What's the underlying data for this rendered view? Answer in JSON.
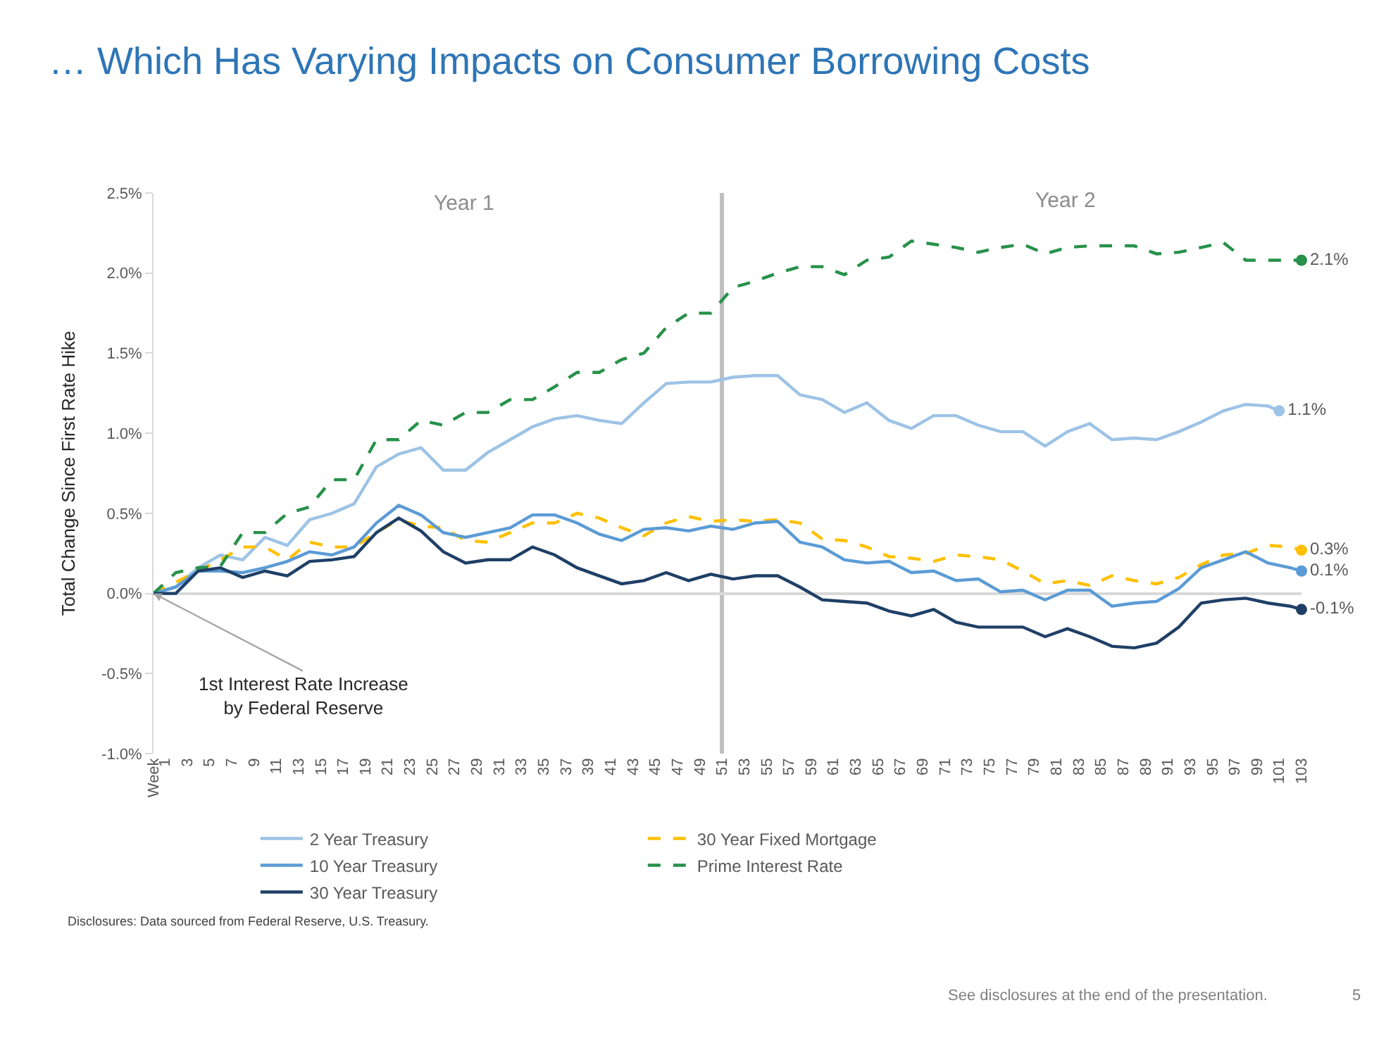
{
  "chart_data": {
    "type": "line",
    "title": "… Which Has Varying Impacts on Consumer Borrowing Costs",
    "ylabel": "Total Change Since First Rate Hike",
    "x": [
      0,
      2,
      4,
      6,
      8,
      10,
      12,
      14,
      16,
      18,
      20,
      22,
      24,
      26,
      28,
      30,
      32,
      34,
      36,
      38,
      40,
      42,
      44,
      46,
      48,
      50,
      52,
      54,
      56,
      58,
      60,
      62,
      64,
      66,
      68,
      70,
      72,
      74,
      76,
      78,
      80,
      82,
      84,
      86,
      88,
      90,
      92,
      94,
      96,
      98,
      100,
      102,
      103
    ],
    "xlim": [
      0,
      103
    ],
    "xticks": [
      {
        "value": 0,
        "label": "Week"
      },
      1,
      3,
      5,
      7,
      9,
      11,
      13,
      15,
      17,
      19,
      21,
      23,
      25,
      27,
      29,
      31,
      33,
      35,
      37,
      39,
      41,
      43,
      45,
      47,
      49,
      51,
      53,
      55,
      57,
      59,
      61,
      63,
      65,
      67,
      69,
      71,
      73,
      75,
      77,
      79,
      81,
      83,
      85,
      87,
      89,
      91,
      93,
      95,
      97,
      99,
      101,
      103
    ],
    "ylim": [
      -1.0,
      2.5
    ],
    "yticks": [
      {
        "value": -1.0,
        "label": "-1.0%"
      },
      {
        "value": -0.5,
        "label": "-0.5%"
      },
      {
        "value": 0,
        "label": "0.0%"
      },
      {
        "value": 0.5,
        "label": "0.5%"
      },
      {
        "value": 1.0,
        "label": "1.0%"
      },
      {
        "value": 1.5,
        "label": "1.5%"
      },
      {
        "value": 2.0,
        "label": "2.0%"
      },
      {
        "value": 2.5,
        "label": "2.5%"
      }
    ],
    "grid": false,
    "legend": "bottom",
    "series": [
      {
        "name": "2 Year Treasury",
        "color": "#9dc3e6",
        "line_style": "solid",
        "x": [
          0,
          2,
          4,
          6,
          8,
          10,
          12,
          14,
          16,
          18,
          20,
          22,
          24,
          26,
          28,
          30,
          32,
          34,
          36,
          38,
          40,
          42,
          44,
          46,
          48,
          50,
          52,
          54,
          56,
          58,
          60,
          62,
          64,
          66,
          68,
          70,
          72,
          74,
          76,
          78,
          80,
          82,
          84,
          86,
          88,
          90,
          92,
          94,
          96,
          98,
          100,
          101
        ],
        "values": [
          0,
          0.04,
          0.16,
          0.24,
          0.21,
          0.35,
          0.3,
          0.46,
          0.5,
          0.56,
          0.79,
          0.87,
          0.91,
          0.77,
          0.77,
          0.88,
          0.96,
          1.04,
          1.09,
          1.11,
          1.08,
          1.06,
          1.19,
          1.31,
          1.32,
          1.32,
          1.35,
          1.36,
          1.36,
          1.24,
          1.21,
          1.13,
          1.19,
          1.08,
          1.03,
          1.11,
          1.11,
          1.05,
          1.01,
          1.01,
          0.92,
          1.01,
          1.06,
          0.96,
          0.97,
          0.96,
          1.01,
          1.07,
          1.14,
          1.18,
          1.17,
          1.14
        ],
        "value_labels": [
          null,
          null,
          null,
          null,
          null,
          null,
          null,
          null,
          null,
          null,
          null,
          null,
          null,
          null,
          null,
          null,
          null,
          null,
          null,
          null,
          null,
          null,
          null,
          null,
          null,
          null,
          null,
          null,
          null,
          null,
          null,
          null,
          null,
          null,
          null,
          null,
          null,
          null,
          null,
          null,
          null,
          null,
          null,
          null,
          null,
          null,
          null,
          null,
          null,
          null,
          null,
          "1.1%"
        ]
      },
      {
        "name": "30 Year Fixed Mortgage",
        "color": "#ffc000",
        "line_style": "dashed",
        "values": [
          0,
          0.07,
          0.14,
          0.21,
          0.29,
          0.29,
          0.21,
          0.32,
          0.29,
          0.29,
          0.38,
          0.46,
          0.42,
          0.41,
          0.33,
          0.32,
          0.38,
          0.44,
          0.44,
          0.5,
          0.47,
          0.41,
          0.36,
          0.44,
          0.48,
          0.45,
          0.46,
          0.45,
          0.46,
          0.44,
          0.34,
          0.33,
          0.29,
          0.23,
          0.22,
          0.2,
          0.24,
          0.23,
          0.21,
          0.14,
          0.06,
          0.08,
          0.05,
          0.11,
          0.08,
          0.06,
          0.1,
          0.18,
          0.24,
          0.25,
          0.3,
          0.29,
          0.27
        ],
        "value_labels": [
          null,
          null,
          null,
          null,
          null,
          null,
          null,
          null,
          null,
          null,
          null,
          null,
          null,
          null,
          null,
          null,
          null,
          null,
          null,
          null,
          null,
          null,
          null,
          null,
          null,
          null,
          null,
          null,
          null,
          null,
          null,
          null,
          null,
          null,
          null,
          null,
          null,
          null,
          null,
          null,
          null,
          null,
          null,
          null,
          null,
          null,
          null,
          null,
          null,
          null,
          null,
          null,
          "0.3%"
        ]
      },
      {
        "name": "10 Year Treasury",
        "color": "#5b9bd5",
        "line_style": "solid",
        "values": [
          0,
          0.04,
          0.14,
          0.14,
          0.13,
          0.16,
          0.2,
          0.26,
          0.24,
          0.29,
          0.44,
          0.55,
          0.49,
          0.38,
          0.35,
          0.38,
          0.41,
          0.49,
          0.49,
          0.44,
          0.37,
          0.33,
          0.4,
          0.41,
          0.39,
          0.42,
          0.4,
          0.44,
          0.45,
          0.32,
          0.29,
          0.21,
          0.19,
          0.2,
          0.13,
          0.14,
          0.08,
          0.09,
          0.01,
          0.02,
          -0.04,
          0.02,
          0.02,
          -0.08,
          -0.06,
          -0.05,
          0.03,
          0.16,
          0.21,
          0.26,
          0.19,
          0.16,
          0.14
        ],
        "value_labels": [
          null,
          null,
          null,
          null,
          null,
          null,
          null,
          null,
          null,
          null,
          null,
          null,
          null,
          null,
          null,
          null,
          null,
          null,
          null,
          null,
          null,
          null,
          null,
          null,
          null,
          null,
          null,
          null,
          null,
          null,
          null,
          null,
          null,
          null,
          null,
          null,
          null,
          null,
          null,
          null,
          null,
          null,
          null,
          null,
          null,
          null,
          null,
          null,
          null,
          null,
          null,
          null,
          "0.1%"
        ]
      },
      {
        "name": "Prime Interest Rate",
        "color": "#27914a",
        "line_style": "dashed",
        "values": [
          0,
          0.13,
          0.16,
          0.17,
          0.38,
          0.38,
          0.5,
          0.54,
          0.71,
          0.71,
          0.96,
          0.96,
          1.08,
          1.05,
          1.13,
          1.13,
          1.21,
          1.21,
          1.29,
          1.38,
          1.38,
          1.46,
          1.5,
          1.66,
          1.75,
          1.75,
          1.91,
          1.95,
          2.0,
          2.04,
          2.04,
          1.99,
          2.08,
          2.1,
          2.2,
          2.18,
          2.16,
          2.13,
          2.16,
          2.18,
          2.12,
          2.16,
          2.17,
          2.17,
          2.17,
          2.12,
          2.13,
          2.16,
          2.19,
          2.08,
          2.08,
          2.08,
          2.08
        ],
        "value_labels": [
          null,
          null,
          null,
          null,
          null,
          null,
          null,
          null,
          null,
          null,
          null,
          null,
          null,
          null,
          null,
          null,
          null,
          null,
          null,
          null,
          null,
          null,
          null,
          null,
          null,
          null,
          null,
          null,
          null,
          null,
          null,
          null,
          null,
          null,
          null,
          null,
          null,
          null,
          null,
          null,
          null,
          null,
          null,
          null,
          null,
          null,
          null,
          null,
          null,
          null,
          null,
          null,
          "2.1%"
        ]
      },
      {
        "name": "30 Year Treasury",
        "color": "#1f3f66",
        "line_style": "solid",
        "values": [
          0,
          0,
          0.14,
          0.16,
          0.1,
          0.14,
          0.11,
          0.2,
          0.21,
          0.23,
          0.38,
          0.47,
          0.39,
          0.26,
          0.19,
          0.21,
          0.21,
          0.29,
          0.24,
          0.16,
          0.11,
          0.06,
          0.08,
          0.13,
          0.08,
          0.12,
          0.09,
          0.11,
          0.11,
          0.04,
          -0.04,
          -0.05,
          -0.06,
          -0.11,
          -0.14,
          -0.1,
          -0.18,
          -0.21,
          -0.21,
          -0.21,
          -0.27,
          -0.22,
          -0.27,
          -0.33,
          -0.34,
          -0.31,
          -0.21,
          -0.06,
          -0.04,
          -0.03,
          -0.06,
          -0.08,
          -0.1
        ],
        "value_labels": [
          null,
          null,
          null,
          null,
          null,
          null,
          null,
          null,
          null,
          null,
          null,
          null,
          null,
          null,
          null,
          null,
          null,
          null,
          null,
          null,
          null,
          null,
          null,
          null,
          null,
          null,
          null,
          null,
          null,
          null,
          null,
          null,
          null,
          null,
          null,
          null,
          null,
          null,
          null,
          null,
          null,
          null,
          null,
          null,
          null,
          null,
          null,
          null,
          null,
          null,
          null,
          null,
          "-0.1%"
        ]
      }
    ],
    "ref_lines": [
      {
        "axis": "x",
        "value": 51,
        "color": "#bfbfbf"
      }
    ],
    "annotations": [
      "Year 1",
      "Year 2",
      {
        "text": "1st Interest Rate Increase\nby Federal Reserve",
        "x": 0,
        "y": 0
      },
      "Disclosures: Data sourced from Federal Reserve, U.S. Treasury.",
      "See disclosures at the end of the presentation.",
      "5"
    ]
  }
}
